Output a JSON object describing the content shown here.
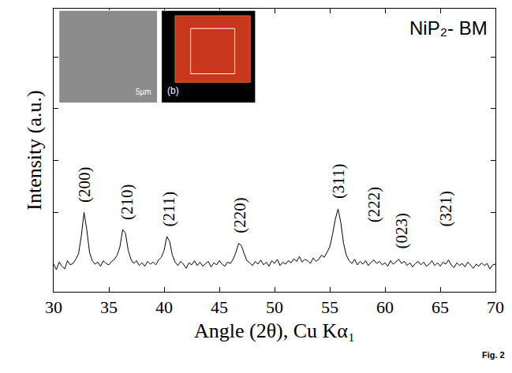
{
  "chart_data": {
    "type": "line",
    "title": "NiP₂- BM",
    "x_label": "Angle (2θ), Cu Kα₁",
    "y_label": "Intensity (a.u.)",
    "note": "Fig. 2",
    "color": "#000000",
    "grid": false,
    "tick_labels": "x",
    "xlim": [
      30,
      70
    ],
    "xticks": [
      30,
      35,
      40,
      45,
      50,
      55,
      60,
      65,
      70
    ],
    "ylim": [
      -0.35,
      3.75
    ],
    "yticks": [
      0.8,
      1.55,
      2.3,
      3.05
    ],
    "x": [
      30,
      30.25,
      30.5,
      30.75,
      31,
      31.25,
      31.5,
      31.75,
      32,
      32.25,
      32.5,
      32.75,
      33,
      33.25,
      33.5,
      33.75,
      34,
      34.25,
      34.5,
      34.75,
      35,
      35.25,
      35.5,
      35.75,
      36,
      36.25,
      36.5,
      36.75,
      37,
      37.25,
      37.5,
      37.75,
      38,
      38.25,
      38.5,
      38.75,
      39,
      39.25,
      39.5,
      39.75,
      40,
      40.25,
      40.5,
      40.75,
      41,
      41.25,
      41.5,
      41.75,
      42,
      42.25,
      42.5,
      42.75,
      43,
      43.25,
      43.5,
      43.75,
      44,
      44.25,
      44.5,
      44.75,
      45,
      45.25,
      45.5,
      45.75,
      46,
      46.25,
      46.5,
      46.75,
      47,
      47.25,
      47.5,
      47.75,
      48,
      48.25,
      48.5,
      48.75,
      49,
      49.25,
      49.5,
      49.75,
      50,
      50.25,
      50.5,
      50.75,
      51,
      51.25,
      51.5,
      51.75,
      52,
      52.25,
      52.5,
      52.75,
      53,
      53.25,
      53.5,
      53.75,
      54,
      54.25,
      54.5,
      54.75,
      55,
      55.25,
      55.5,
      55.75,
      56,
      56.25,
      56.5,
      56.75,
      57,
      57.25,
      57.5,
      57.75,
      58,
      58.25,
      58.5,
      58.75,
      59,
      59.25,
      59.5,
      59.75,
      60,
      60.25,
      60.5,
      60.75,
      61,
      61.25,
      61.5,
      61.75,
      62,
      62.25,
      62.5,
      62.75,
      63,
      63.25,
      63.5,
      63.75,
      64,
      64.25,
      64.5,
      64.75,
      65,
      65.25,
      65.5,
      65.75,
      66,
      66.25,
      66.5,
      66.75,
      67,
      67.25,
      67.5,
      67.75,
      68,
      68.25,
      68.5,
      68.75,
      69,
      69.25,
      69.5,
      69.75,
      70
    ],
    "values": [
      0.05,
      -0.03,
      0.08,
      0.02,
      -0.02,
      0.1,
      0.04,
      0.06,
      0.12,
      0.2,
      0.45,
      0.8,
      0.55,
      0.22,
      0.1,
      0.05,
      0.08,
      0.02,
      0.1,
      0.06,
      0.04,
      0.09,
      0.12,
      0.18,
      0.3,
      0.55,
      0.5,
      0.25,
      0.12,
      0.06,
      0.1,
      0.03,
      0.07,
      0.02,
      0.09,
      0.05,
      0.08,
      0.04,
      0.11,
      0.15,
      0.25,
      0.45,
      0.38,
      0.18,
      0.08,
      0.03,
      0.09,
      0.05,
      -0.01,
      0.07,
      0.04,
      0.1,
      0.03,
      0.08,
      0.02,
      0.06,
      0.09,
      0.01,
      0.07,
      0.04,
      0.1,
      0.05,
      0.02,
      0.08,
      0.06,
      0.12,
      0.22,
      0.35,
      0.32,
      0.2,
      0.1,
      0.07,
      0.03,
      0.09,
      0.05,
      0.11,
      0.04,
      0.08,
      0.02,
      0.1,
      0.06,
      0.12,
      0.03,
      0.08,
      0.05,
      0.1,
      0.07,
      0.13,
      0.09,
      0.16,
      0.08,
      0.12,
      0.1,
      0.06,
      0.14,
      0.09,
      0.12,
      0.18,
      0.15,
      0.22,
      0.3,
      0.48,
      0.7,
      0.85,
      0.65,
      0.35,
      0.18,
      0.1,
      0.06,
      0.12,
      0.04,
      0.09,
      0.05,
      0.1,
      0.03,
      0.08,
      0.11,
      0.06,
      0.09,
      0.04,
      0.07,
      0.02,
      0.1,
      0.05,
      0.08,
      0.12,
      0.06,
      0.09,
      0.03,
      0.07,
      0.01,
      0.06,
      0.09,
      0.04,
      0.08,
      0.02,
      0.05,
      0.1,
      0.03,
      0.07,
      0.02,
      0.08,
      0.05,
      0.11,
      0.04,
      0.0,
      0.07,
      0.03,
      0.06,
      0.01,
      0.08,
      0.04,
      -0.01,
      0.05,
      0.02,
      0.07,
      0.03,
      0.06,
      -0.02,
      0.04,
      0.05
    ],
    "annotations": [
      {
        "text": "(200)",
        "x": 32.8,
        "y": 0.92
      },
      {
        "text": "(210)",
        "x": 36.6,
        "y": 0.67
      },
      {
        "text": "(211)",
        "x": 40.4,
        "y": 0.57
      },
      {
        "text": "(220)",
        "x": 46.9,
        "y": 0.47
      },
      {
        "text": "(311)",
        "x": 55.8,
        "y": 0.97
      },
      {
        "text": "(222)",
        "x": 59.0,
        "y": 0.63
      },
      {
        "text": "(023)",
        "x": 61.5,
        "y": 0.25
      },
      {
        "text": "(321)",
        "x": 65.5,
        "y": 0.57
      }
    ],
    "insets": [
      {
        "label": "5µm"
      },
      {
        "label": "(b)"
      }
    ]
  }
}
